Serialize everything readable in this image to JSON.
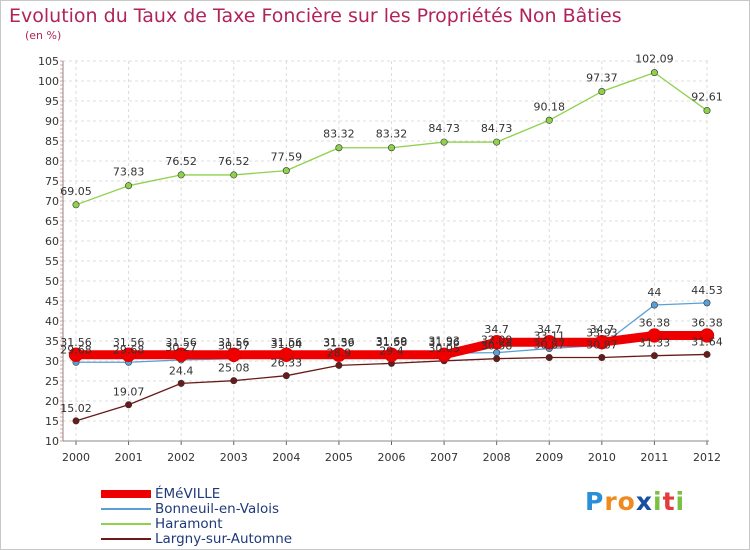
{
  "title": "Evolution du Taux de Taxe Foncière sur les Propriétés Non Bâties",
  "unit_label": "(en %)",
  "logo": {
    "text": "Proxiti",
    "letters": [
      "P",
      "r",
      "o",
      "x",
      "i",
      "t",
      "i"
    ],
    "colors": [
      "#2a8fd6",
      "#f08a1c",
      "#f08a1c",
      "#1a4fa0",
      "#7ac143",
      "#e23d3d",
      "#7ac143"
    ]
  },
  "chart_data": {
    "type": "line",
    "categories": [
      "2000",
      "2001",
      "2002",
      "2003",
      "2004",
      "2005",
      "2006",
      "2007",
      "2008",
      "2009",
      "2010",
      "2011",
      "2012"
    ],
    "ylim": [
      10,
      105
    ],
    "yticks": [
      10,
      15,
      20,
      25,
      30,
      35,
      40,
      45,
      50,
      55,
      60,
      65,
      70,
      75,
      80,
      85,
      90,
      95,
      100,
      105
    ],
    "grid": "horizontal and vertical",
    "legend_position": "bottom",
    "series": [
      {
        "name": "ÉMéVILLE",
        "color": "#ee0000",
        "values": [
          31.56,
          31.56,
          31.56,
          31.56,
          31.56,
          31.56,
          31.56,
          31.56,
          34.7,
          34.7,
          34.7,
          36.38,
          36.38
        ],
        "labels": [
          "31.56",
          "31.56",
          "31.56",
          "31.56",
          "31.56",
          "31.56",
          "31.56",
          "31.56",
          "34.7",
          "34.7",
          "34.7",
          "36.38",
          "36.38"
        ]
      },
      {
        "name": "Bonneuil-en-Valois",
        "color": "#5aa0d8",
        "values": [
          29.68,
          29.68,
          30.27,
          30.57,
          31.04,
          31.39,
          31.69,
          31.93,
          32.09,
          33.11,
          33.93,
          44,
          44.53
        ],
        "labels": [
          "29.68",
          "29.68",
          "30.27",
          "30.57",
          "31.04",
          "31.39",
          "31.69",
          "31.93",
          "32.09",
          "33.11",
          "33.93",
          "44",
          "44.53"
        ]
      },
      {
        "name": "Haramont",
        "color": "#8ed14a",
        "values": [
          69.05,
          73.83,
          76.52,
          76.52,
          77.59,
          83.32,
          83.32,
          84.73,
          84.73,
          90.18,
          97.37,
          102.09,
          92.61
        ],
        "labels": [
          "69.05",
          "73.83",
          "76.52",
          "76.52",
          "77.59",
          "83.32",
          "83.32",
          "84.73",
          "84.73",
          "90.18",
          "97.37",
          "102.09",
          "92.61"
        ]
      },
      {
        "name": "Largny-sur-Automne",
        "color": "#6b1a1a",
        "values": [
          15.02,
          19.07,
          24.4,
          25.08,
          26.33,
          28.9,
          29.4,
          30.05,
          30.58,
          30.87,
          30.87,
          31.33,
          31.64
        ],
        "labels": [
          "15.02",
          "19.07",
          "24.4",
          "25.08",
          "26.33",
          "28.9",
          "29.4",
          "30.05",
          "30.58",
          "30.87",
          "30.87",
          "31.33",
          "31.64"
        ]
      }
    ]
  }
}
